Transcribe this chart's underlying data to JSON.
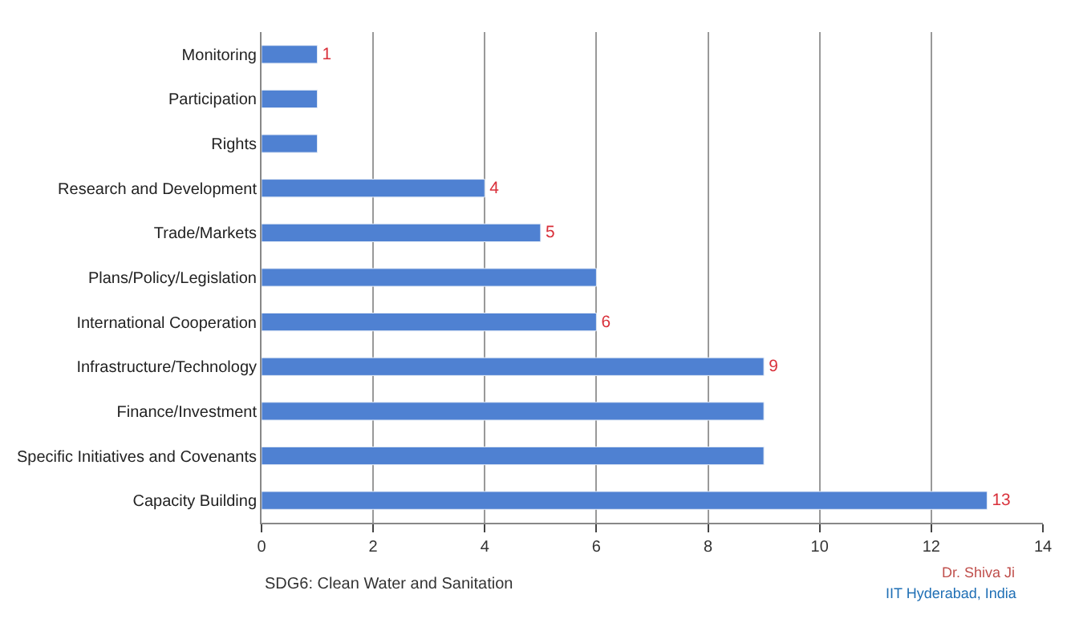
{
  "chart_data": {
    "type": "bar",
    "orientation": "horizontal",
    "categories": [
      "Monitoring",
      "Participation",
      "Rights",
      "Research and Development",
      "Trade/Markets",
      "Plans/Policy/Legislation",
      "International Cooperation",
      "Infrastructure/Technology",
      "Finance/Investment",
      "Specific Initiatives and Covenants",
      "Capacity Building"
    ],
    "values": [
      1,
      1,
      1,
      4,
      5,
      6,
      6,
      9,
      9,
      9,
      13
    ],
    "value_labels": [
      "1",
      null,
      null,
      "4",
      "5",
      null,
      "6",
      "9",
      null,
      null,
      "13"
    ],
    "color": "#4f81d2",
    "xlim": [
      0,
      14
    ],
    "xticks": [
      0,
      2,
      4,
      6,
      8,
      10,
      12,
      14
    ],
    "grid": "x",
    "annotations": [
      "SDG6: Clean Water and Sanitation",
      "Dr. Shiva Ji",
      "IIT Hyderabad, India"
    ]
  }
}
